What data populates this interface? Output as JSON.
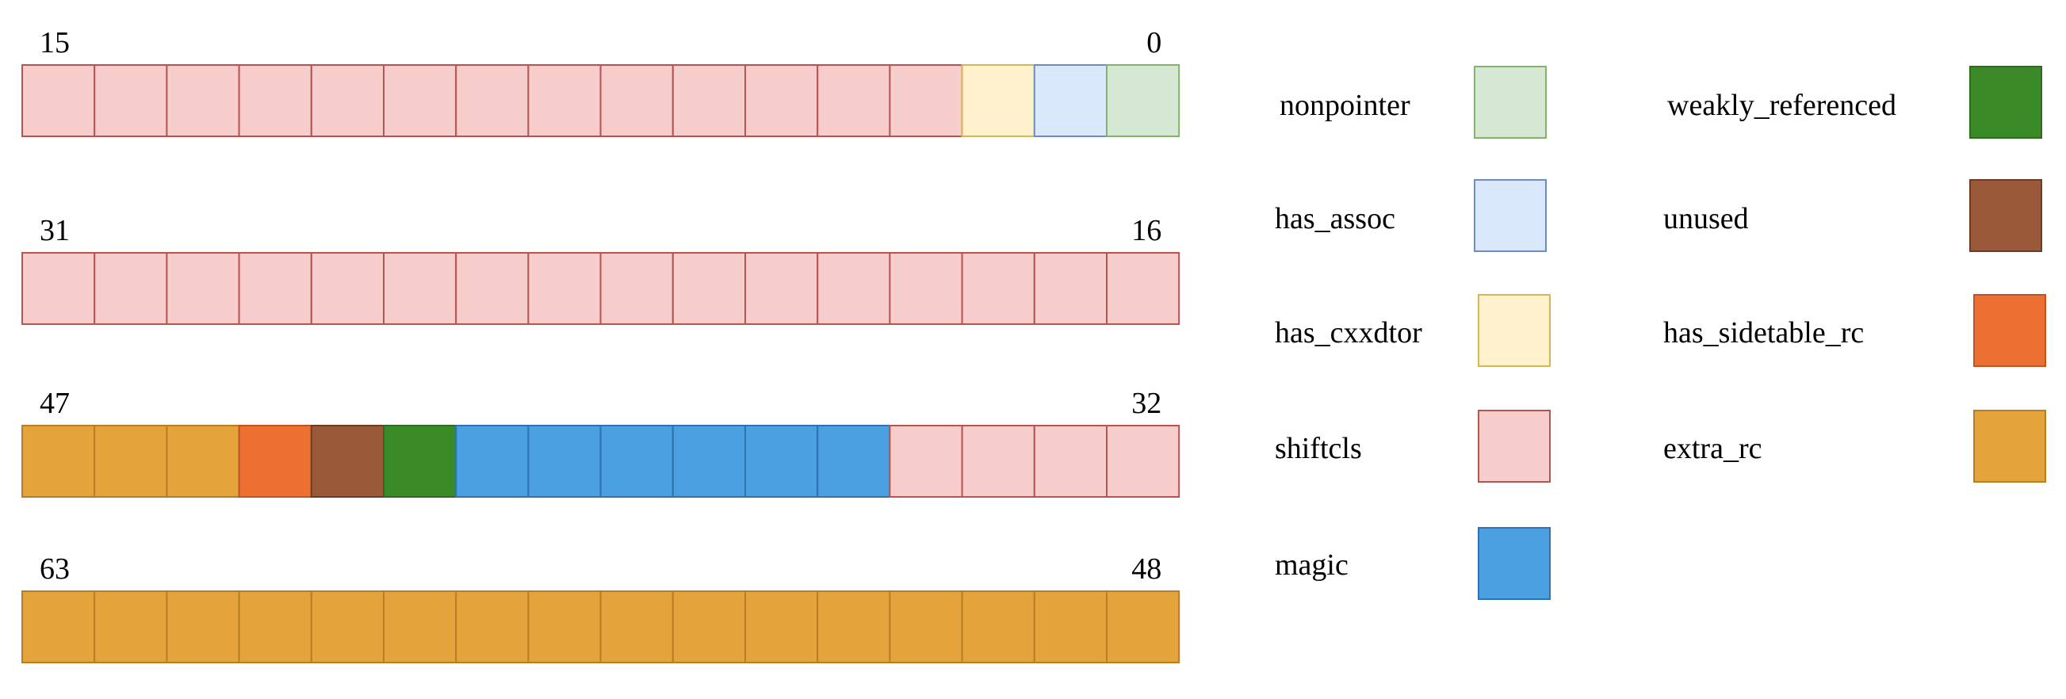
{
  "colors": {
    "nonpointer": {
      "fill": "#d5e8d4",
      "stroke": "#82b366"
    },
    "has_assoc": {
      "fill": "#dae8fc",
      "stroke": "#6c8ebf"
    },
    "has_cxxdtor": {
      "fill": "#fff2cc",
      "stroke": "#d6b656"
    },
    "shiftcls": {
      "fill": "#f8cecc",
      "stroke": "#b85450"
    },
    "magic": {
      "fill": "#4aa0e0",
      "stroke": "#2f72b0"
    },
    "weakly_referenced": {
      "fill": "#3a8a28",
      "stroke": "#2d6b1e"
    },
    "unused": {
      "fill": "#9a5a3a",
      "stroke": "#6e3c22"
    },
    "has_sidetable_rc": {
      "fill": "#ec7032",
      "stroke": "#c25420"
    },
    "extra_rc": {
      "fill": "#e5a43b",
      "stroke": "#b97e22"
    }
  },
  "rows": [
    {
      "high_label": "15",
      "low_label": "0",
      "bits": [
        "shiftcls",
        "shiftcls",
        "shiftcls",
        "shiftcls",
        "shiftcls",
        "shiftcls",
        "shiftcls",
        "shiftcls",
        "shiftcls",
        "shiftcls",
        "shiftcls",
        "shiftcls",
        "shiftcls",
        "has_cxxdtor",
        "has_assoc",
        "nonpointer"
      ]
    },
    {
      "high_label": "31",
      "low_label": "16",
      "bits": [
        "shiftcls",
        "shiftcls",
        "shiftcls",
        "shiftcls",
        "shiftcls",
        "shiftcls",
        "shiftcls",
        "shiftcls",
        "shiftcls",
        "shiftcls",
        "shiftcls",
        "shiftcls",
        "shiftcls",
        "shiftcls",
        "shiftcls",
        "shiftcls"
      ]
    },
    {
      "high_label": "47",
      "low_label": "32",
      "bits": [
        "extra_rc",
        "extra_rc",
        "extra_rc",
        "has_sidetable_rc",
        "unused",
        "weakly_referenced",
        "magic",
        "magic",
        "magic",
        "magic",
        "magic",
        "magic",
        "shiftcls",
        "shiftcls",
        "shiftcls",
        "shiftcls"
      ]
    },
    {
      "high_label": "63",
      "low_label": "48",
      "bits": [
        "extra_rc",
        "extra_rc",
        "extra_rc",
        "extra_rc",
        "extra_rc",
        "extra_rc",
        "extra_rc",
        "extra_rc",
        "extra_rc",
        "extra_rc",
        "extra_rc",
        "extra_rc",
        "extra_rc",
        "extra_rc",
        "extra_rc",
        "extra_rc"
      ]
    }
  ],
  "legend": [
    {
      "key": "nonpointer",
      "label": "nonpointer"
    },
    {
      "key": "has_assoc",
      "label": "has_assoc"
    },
    {
      "key": "has_cxxdtor",
      "label": "has_cxxdtor"
    },
    {
      "key": "shiftcls",
      "label": "shiftcls"
    },
    {
      "key": "magic",
      "label": "magic"
    },
    {
      "key": "weakly_referenced",
      "label": "weakly_referenced"
    },
    {
      "key": "unused",
      "label": "unused"
    },
    {
      "key": "has_sidetable_rc",
      "label": "has_sidetable_rc"
    },
    {
      "key": "extra_rc",
      "label": "extra_rc"
    }
  ]
}
